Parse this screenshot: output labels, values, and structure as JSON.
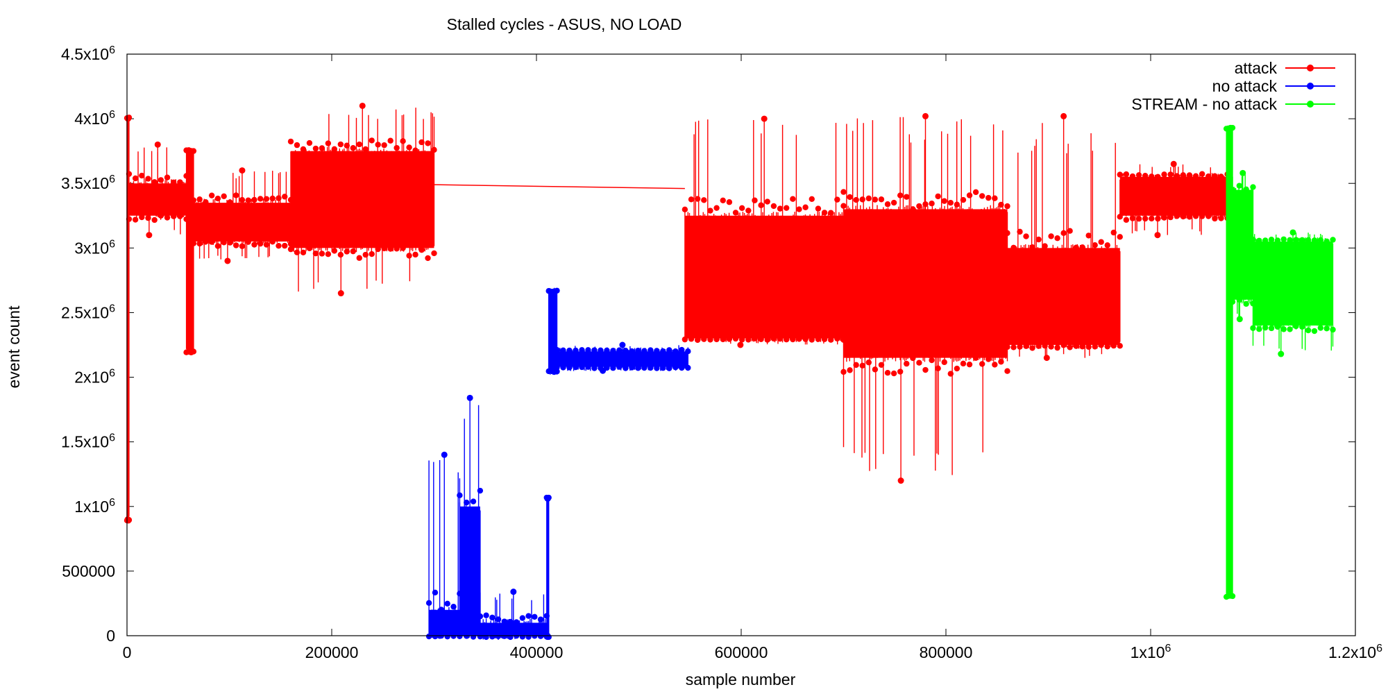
{
  "chart_data": {
    "type": "line",
    "title": "Stalled cycles - ASUS, NO LOAD",
    "xlabel": "sample number",
    "ylabel": "event count",
    "xlim": [
      0,
      1200000
    ],
    "ylim": [
      0,
      4500000
    ],
    "x_ticks": [
      {
        "value": 0,
        "label": "0"
      },
      {
        "value": 200000,
        "label": "200000"
      },
      {
        "value": 400000,
        "label": "400000"
      },
      {
        "value": 600000,
        "label": "600000"
      },
      {
        "value": 800000,
        "label": "800000"
      },
      {
        "value": 1000000,
        "label": "1x10",
        "exp": "6"
      },
      {
        "value": 1200000,
        "label": "1.2x10",
        "exp": "6"
      }
    ],
    "y_ticks": [
      {
        "value": 0,
        "label": "0"
      },
      {
        "value": 500000,
        "label": "500000"
      },
      {
        "value": 1000000,
        "label": "1x10",
        "exp": "6"
      },
      {
        "value": 1500000,
        "label": "1.5x10",
        "exp": "6"
      },
      {
        "value": 2000000,
        "label": "2x10",
        "exp": "6"
      },
      {
        "value": 2500000,
        "label": "2.5x10",
        "exp": "6"
      },
      {
        "value": 3000000,
        "label": "3x10",
        "exp": "6"
      },
      {
        "value": 3500000,
        "label": "3.5x10",
        "exp": "6"
      },
      {
        "value": 4000000,
        "label": "4x10",
        "exp": "6"
      },
      {
        "value": 4500000,
        "label": "4.5x10",
        "exp": "6"
      }
    ],
    "legend_position": "top-right",
    "series": [
      {
        "name": "attack",
        "color": "#ff0000",
        "segments": [
          {
            "x0": 0,
            "x1": 2000,
            "low": 900000,
            "high": 4000000
          },
          {
            "x0": 2000,
            "x1": 58000,
            "low": 3100000,
            "high": 3800000,
            "core_low": 3250000,
            "core_high": 3500000
          },
          {
            "x0": 58000,
            "x1": 65000,
            "low": 2200000,
            "high": 3750000
          },
          {
            "x0": 65000,
            "x1": 160000,
            "low": 2900000,
            "high": 3600000,
            "core_low": 3050000,
            "core_high": 3350000
          },
          {
            "x0": 160000,
            "x1": 300000,
            "low": 2650000,
            "high": 4100000,
            "core_low": 3000000,
            "core_high": 3750000
          },
          {
            "x0": 545000,
            "x1": 700000,
            "low": 2250000,
            "high": 4000000,
            "core_low": 2300000,
            "core_high": 3250000
          },
          {
            "x0": 700000,
            "x1": 860000,
            "low": 1200000,
            "high": 4020000,
            "core_low": 2150000,
            "core_high": 3300000
          },
          {
            "x0": 860000,
            "x1": 970000,
            "low": 2150000,
            "high": 4020000,
            "core_low": 2250000,
            "core_high": 3000000
          },
          {
            "x0": 970000,
            "x1": 1075000,
            "low": 3100000,
            "high": 3650000,
            "core_low": 3250000,
            "core_high": 3550000
          }
        ],
        "bridges": [
          {
            "x0": 300000,
            "y0": 3490000,
            "x1": 545000,
            "y1": 3460000
          }
        ]
      },
      {
        "name": "no attack",
        "color": "#0000ff",
        "segments": [
          {
            "x0": 295000,
            "x1": 325000,
            "low": 0,
            "high": 1400000,
            "core_low": 0,
            "core_high": 200000
          },
          {
            "x0": 325000,
            "x1": 345000,
            "low": 0,
            "high": 1840000,
            "core_low": 0,
            "core_high": 1000000
          },
          {
            "x0": 345000,
            "x1": 410000,
            "low": 0,
            "high": 340000,
            "core_low": 0,
            "core_high": 100000
          },
          {
            "x0": 410000,
            "x1": 412000,
            "low": 0,
            "high": 1060000
          },
          {
            "x0": 412000,
            "x1": 420000,
            "low": 2050000,
            "high": 2660000
          },
          {
            "x0": 420000,
            "x1": 548000,
            "low": 2050000,
            "high": 2250000,
            "core_low": 2080000,
            "core_high": 2200000
          }
        ],
        "bridges": []
      },
      {
        "name": "STREAM - no attack",
        "color": "#00ff00",
        "segments": [
          {
            "x0": 1074000,
            "x1": 1080000,
            "low": 310000,
            "high": 3920000
          },
          {
            "x0": 1080000,
            "x1": 1100000,
            "low": 2450000,
            "high": 3580000,
            "core_low": 2600000,
            "core_high": 3450000
          },
          {
            "x0": 1100000,
            "x1": 1178000,
            "low": 2180000,
            "high": 3120000,
            "core_low": 2400000,
            "core_high": 3050000
          }
        ],
        "bridges": []
      }
    ]
  }
}
